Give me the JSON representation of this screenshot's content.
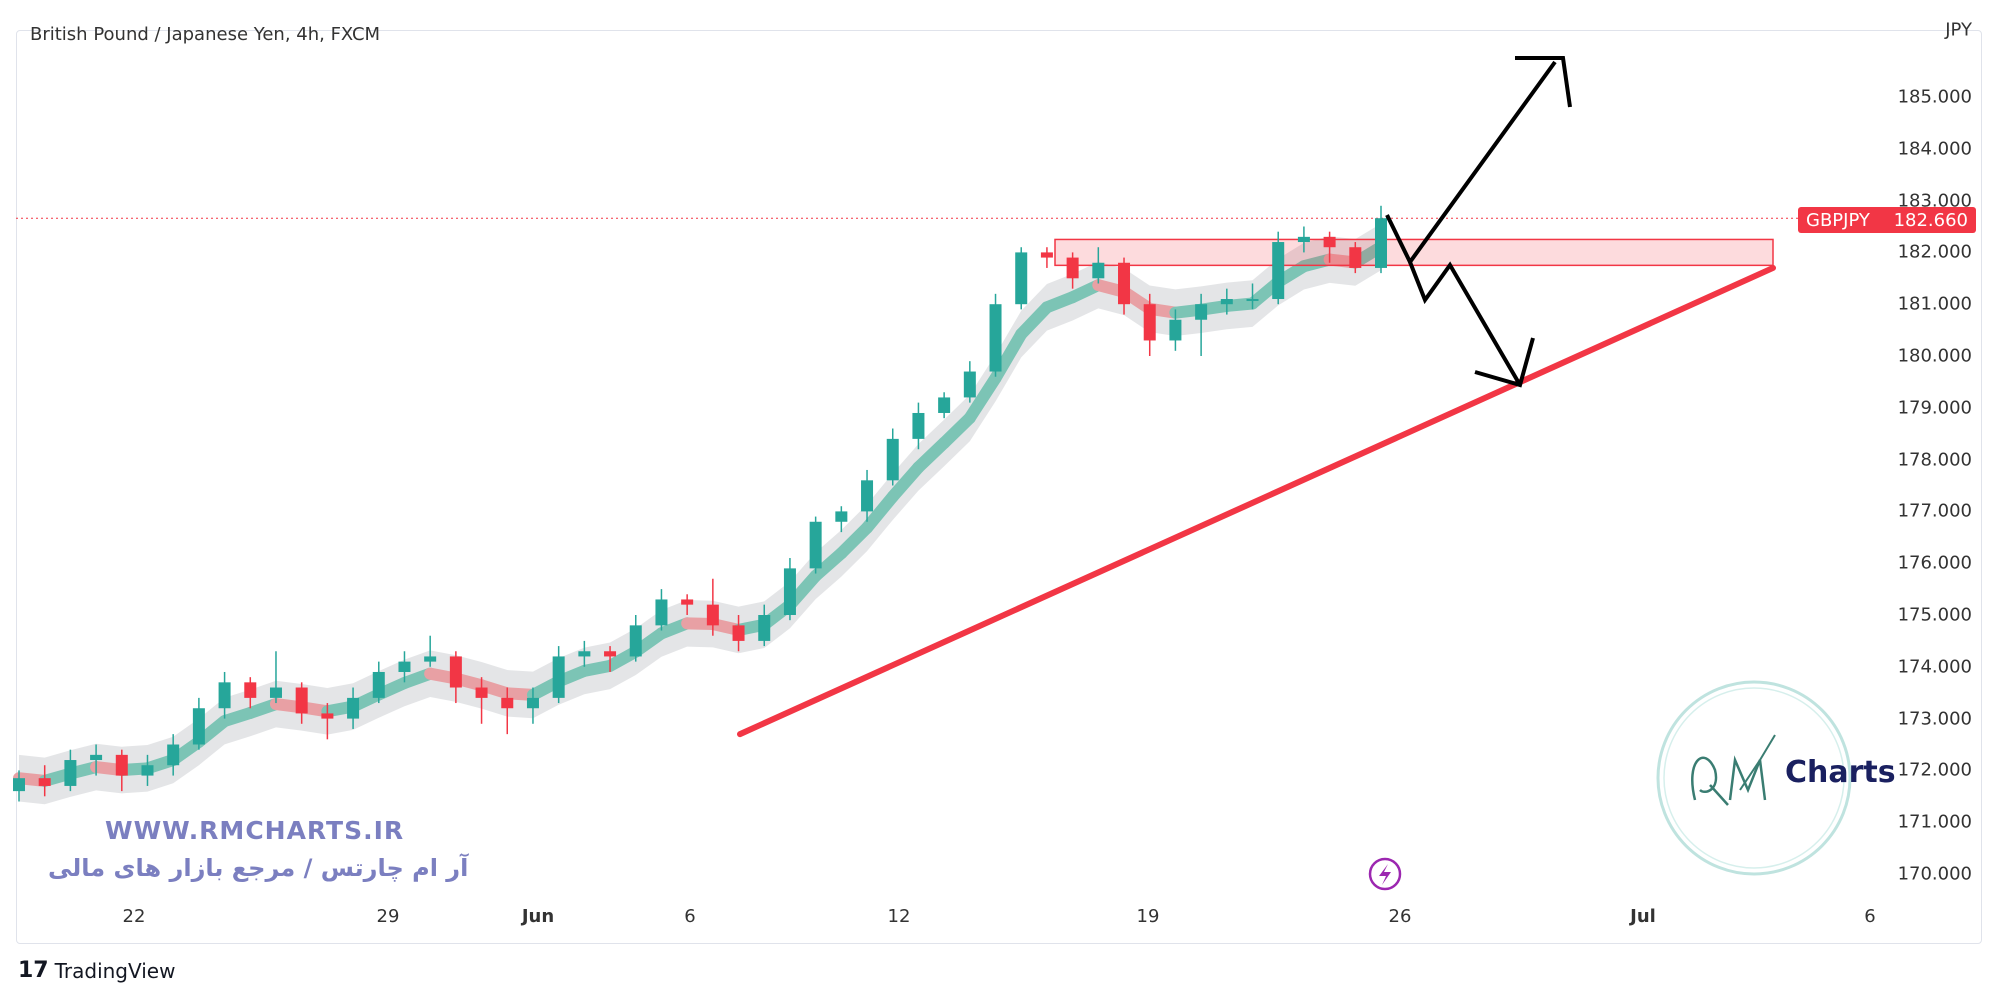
{
  "header": {
    "title": "British Pound / Japanese Yen, 4h, FXCM"
  },
  "price_tag": {
    "symbol": "GBPJPY",
    "value": "182.660",
    "color": "#f23645"
  },
  "watermark": {
    "url": "WWW.RMCHARTS.IR",
    "tagline": "آر ام چارتس / مرجع بازار های مالی",
    "logo": "RM Charts",
    "logo_word": "Charts"
  },
  "footer": {
    "brand": "TradingView"
  },
  "icons": {
    "lightning": "lightning-icon",
    "tv_logo": "tradingview-logo-icon"
  },
  "chart_data": {
    "type": "candlestick",
    "title": "British Pound / Japanese Yen, 4h, FXCM",
    "currency_label": "JPY",
    "y_ticks": [
      "185.000",
      "184.000",
      "183.000",
      "182.000",
      "181.000",
      "180.000",
      "179.000",
      "178.000",
      "177.000",
      "176.000",
      "175.000",
      "174.000",
      "173.000",
      "172.000",
      "171.000",
      "170.000"
    ],
    "ylim": [
      169.3,
      186.3
    ],
    "x_ticks": [
      "22",
      "29",
      "Jun",
      "6",
      "12",
      "19",
      "26",
      "Jul",
      "6"
    ],
    "colors": {
      "up": "#26a69a",
      "down": "#f23645",
      "trendline": "#f23645",
      "zone": "#f23645",
      "ma_up": "#7cc4b5",
      "ma_down": "#e8a0a4",
      "band": "#d9dadd"
    },
    "last_price": 182.66,
    "candles": [
      [
        171.6,
        172.0,
        171.4,
        171.85
      ],
      [
        171.85,
        172.1,
        171.5,
        171.7
      ],
      [
        171.7,
        172.4,
        171.6,
        172.2
      ],
      [
        172.2,
        172.5,
        171.9,
        172.3
      ],
      [
        172.3,
        172.4,
        171.6,
        171.9
      ],
      [
        171.9,
        172.3,
        171.7,
        172.1
      ],
      [
        172.1,
        172.7,
        171.9,
        172.5
      ],
      [
        172.5,
        173.4,
        172.4,
        173.2
      ],
      [
        173.2,
        173.9,
        173.0,
        173.7
      ],
      [
        173.7,
        173.8,
        173.2,
        173.4
      ],
      [
        173.4,
        174.3,
        173.3,
        173.6
      ],
      [
        173.6,
        173.7,
        172.9,
        173.1
      ],
      [
        173.1,
        173.3,
        172.6,
        173.0
      ],
      [
        173.0,
        173.6,
        172.8,
        173.4
      ],
      [
        173.4,
        174.1,
        173.3,
        173.9
      ],
      [
        173.9,
        174.3,
        173.7,
        174.1
      ],
      [
        174.1,
        174.6,
        174.0,
        174.2
      ],
      [
        174.2,
        174.3,
        173.3,
        173.6
      ],
      [
        173.6,
        173.8,
        172.9,
        173.4
      ],
      [
        173.4,
        173.6,
        172.7,
        173.2
      ],
      [
        173.2,
        173.6,
        172.9,
        173.4
      ],
      [
        173.4,
        174.4,
        173.3,
        174.2
      ],
      [
        174.2,
        174.5,
        174.0,
        174.3
      ],
      [
        174.3,
        174.4,
        173.9,
        174.2
      ],
      [
        174.2,
        175.0,
        174.1,
        174.8
      ],
      [
        174.8,
        175.5,
        174.7,
        175.3
      ],
      [
        175.3,
        175.4,
        175.0,
        175.2
      ],
      [
        175.2,
        175.7,
        174.6,
        174.8
      ],
      [
        174.8,
        175.0,
        174.3,
        174.5
      ],
      [
        174.5,
        175.2,
        174.4,
        175.0
      ],
      [
        175.0,
        176.1,
        174.9,
        175.9
      ],
      [
        175.9,
        176.9,
        175.8,
        176.8
      ],
      [
        176.8,
        177.1,
        176.6,
        177.0
      ],
      [
        177.0,
        177.8,
        176.8,
        177.6
      ],
      [
        177.6,
        178.6,
        177.5,
        178.4
      ],
      [
        178.4,
        179.1,
        178.2,
        178.9
      ],
      [
        178.9,
        179.3,
        178.8,
        179.2
      ],
      [
        179.2,
        179.9,
        179.1,
        179.7
      ],
      [
        179.7,
        181.2,
        179.6,
        181.0
      ],
      [
        181.0,
        182.1,
        180.9,
        182.0
      ],
      [
        182.0,
        182.1,
        181.7,
        181.9
      ],
      [
        181.9,
        182.0,
        181.3,
        181.5
      ],
      [
        181.5,
        182.1,
        181.4,
        181.8
      ],
      [
        181.8,
        181.9,
        180.8,
        181.0
      ],
      [
        181.0,
        181.2,
        180.0,
        180.3
      ],
      [
        180.3,
        180.9,
        180.1,
        180.7
      ],
      [
        180.7,
        181.2,
        180.0,
        181.0
      ],
      [
        181.0,
        181.3,
        180.8,
        181.1
      ],
      [
        181.1,
        181.4,
        180.9,
        181.1
      ],
      [
        181.1,
        182.4,
        181.0,
        182.2
      ],
      [
        182.2,
        182.5,
        182.0,
        182.3
      ],
      [
        182.3,
        182.4,
        181.8,
        182.1
      ],
      [
        182.1,
        182.2,
        181.6,
        181.7
      ],
      [
        181.7,
        182.9,
        181.6,
        182.66
      ]
    ],
    "resistance_zone": [
      181.75,
      182.25
    ],
    "trendline": {
      "from_price": 172.7,
      "to_price": 181.7
    },
    "scenarios": [
      "breakout-up",
      "pullback-to-trendline"
    ]
  }
}
